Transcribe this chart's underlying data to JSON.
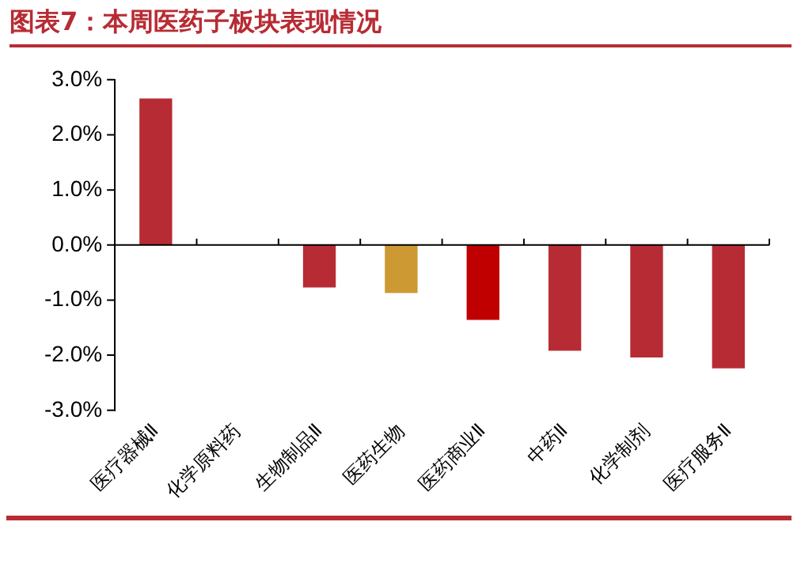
{
  "chart_data": {
    "type": "bar",
    "title": "图表7：本周医药子板块表现情况",
    "categories": [
      "医疗器械Ⅱ",
      "化学原料药",
      "生物制品Ⅱ",
      "医药生物",
      "医药商业Ⅱ",
      "中药Ⅱ",
      "化学制剂",
      "医疗服务Ⅱ"
    ],
    "values": [
      2.66,
      0,
      -0.77,
      -0.87,
      -1.36,
      -1.92,
      -2.04,
      -2.24
    ],
    "colors": [
      "#b72c34",
      "#b72c34",
      "#b72c34",
      "#cc9933",
      "#c00000",
      "#b72c34",
      "#b72c34",
      "#b72c34"
    ],
    "ylim": [
      -3,
      3
    ],
    "yticks": [
      {
        "value": -3,
        "label": "-3.0%"
      },
      {
        "value": -2,
        "label": "-2.0%"
      },
      {
        "value": -1,
        "label": "-1.0%"
      },
      {
        "value": 0,
        "label": "0.0%"
      },
      {
        "value": 1,
        "label": "1.0%"
      },
      {
        "value": 2,
        "label": "2.0%"
      },
      {
        "value": 3,
        "label": "3.0%"
      }
    ],
    "legend": false
  }
}
